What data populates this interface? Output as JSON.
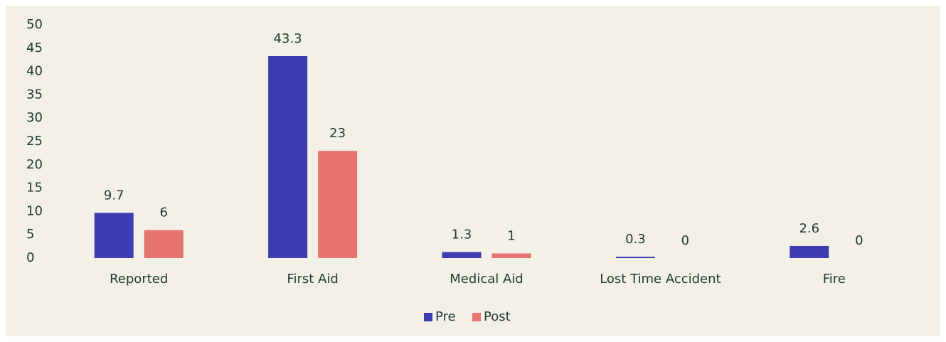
{
  "chart_data": {
    "type": "bar",
    "categories": [
      "Reported",
      "First Aid",
      "Medical Aid",
      "Lost Time Accident",
      "Fire"
    ],
    "series": [
      {
        "name": "Pre",
        "color": "#3d3cb0",
        "values": [
          9.7,
          43.3,
          1.3,
          0.3,
          2.6
        ]
      },
      {
        "name": "Post",
        "color": "#e6756f",
        "values": [
          6,
          23,
          1,
          0,
          0
        ]
      }
    ],
    "ylim": [
      0,
      50
    ],
    "yticks": [
      0,
      5,
      10,
      15,
      20,
      25,
      30,
      35,
      40,
      45,
      50
    ],
    "grid": false,
    "legend": "bottom"
  }
}
